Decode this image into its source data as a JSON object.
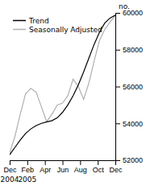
{
  "chart_data": {
    "type": "line",
    "title": "",
    "ylabel": "no.",
    "x": [
      0,
      0.6,
      1.2,
      1.8,
      2.4,
      3,
      3.6,
      4.2,
      4.8,
      5.4,
      6,
      6.6,
      7.2,
      7.8,
      8.4,
      9,
      9.6,
      10.2,
      10.8,
      11.4,
      12
    ],
    "series": [
      {
        "name": "Trend",
        "color": "#000000",
        "values": [
          52300,
          52700,
          53100,
          53450,
          53700,
          53880,
          54000,
          54080,
          54150,
          54300,
          54600,
          55000,
          55500,
          56100,
          56800,
          57550,
          58300,
          58950,
          59450,
          59720,
          59880
        ]
      },
      {
        "name": "Seasonally Adjusted",
        "color": "#b0b0b0",
        "values": [
          52400,
          53300,
          54500,
          55600,
          55900,
          55700,
          54900,
          54100,
          54500,
          55000,
          55100,
          55500,
          56400,
          56000,
          55300,
          56200,
          57400,
          58500,
          59100,
          59500,
          59850
        ]
      }
    ],
    "xlim": [
      0,
      12
    ],
    "xticks": [
      {
        "value": 0,
        "label": "Dec"
      },
      {
        "value": 2,
        "label": "Feb"
      },
      {
        "value": 4,
        "label": "Apr"
      },
      {
        "value": 6,
        "label": "Jun"
      },
      {
        "value": 8,
        "label": "Aug"
      },
      {
        "value": 10,
        "label": "Oct"
      },
      {
        "value": 12,
        "label": "Dec"
      }
    ],
    "ylim": [
      52000,
      60000
    ],
    "yticks": [
      52000,
      54000,
      56000,
      58000,
      60000
    ],
    "annotations": [
      {
        "text": "2004",
        "x": 0
      },
      {
        "text": "2005",
        "x": 2
      }
    ],
    "legend": "upper left",
    "grid": false
  }
}
